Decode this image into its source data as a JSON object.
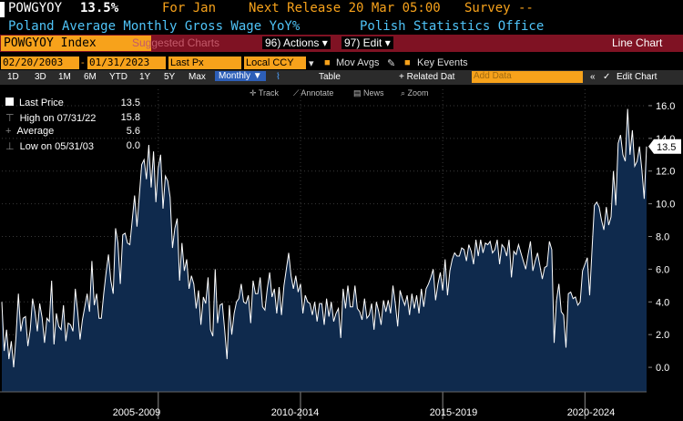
{
  "header": {
    "ticker": "POWGYOY",
    "last": "13.5%",
    "for_label": "For Jan",
    "next_release": "Next Release 20 Mar 05:00",
    "survey": "Survey --",
    "description": "Poland Average Monthly Gross Wage YoY%",
    "source": "Polish Statistics Office"
  },
  "toolbar": {
    "index": "POWGYOY Index",
    "suggested": "Suggested Charts",
    "actions": "96) Actions",
    "edit": "97) Edit",
    "chart_type": "Line Chart"
  },
  "settings": {
    "start": "02/20/2003",
    "end": "01/31/2023",
    "field": "Last Px",
    "currency": "Local CCY",
    "mov_avgs": "Mov Avgs",
    "key_events": "Key Events"
  },
  "periods": [
    "1D",
    "3D",
    "1M",
    "6M",
    "YTD",
    "1Y",
    "5Y",
    "Max"
  ],
  "frequency": "Monthly",
  "table_label": "Table",
  "related": "+ Related Dat",
  "add_data": "Add Data",
  "edit_chart": "Edit Chart",
  "tools": [
    "Track",
    "Annotate",
    "News",
    "Zoom"
  ],
  "legend": [
    {
      "label": "Last Price",
      "value": "13.5"
    },
    {
      "label": "High on 07/31/22",
      "value": "15.8"
    },
    {
      "label": "Average",
      "value": "5.6"
    },
    {
      "label": "Low on 05/31/03",
      "value": "0.0"
    }
  ],
  "colors": {
    "line": "#ffffff",
    "fill": "#0f2a4d",
    "accent": "#f7a21b",
    "bar": "#7f1223"
  },
  "chart_data": {
    "type": "area",
    "title": "Poland Average Monthly Gross Wage YoY%",
    "xlabel": "",
    "ylabel": "",
    "x_tick_labels": [
      "2005-2009",
      "2010-2014",
      "2015-2019",
      "2020-2024"
    ],
    "y_ticks": [
      "0.0",
      "2.0",
      "4.0",
      "6.0",
      "8.0",
      "10.0",
      "12.0",
      "14.0",
      "16.0"
    ],
    "ylim": [
      -1.5,
      17
    ],
    "last_value_label": "13.5",
    "x_start": "2003-02",
    "x_end": "2023-01",
    "series": [
      {
        "values": [
          4.0,
          1.0,
          2.3,
          0.5,
          1.6,
          0.0,
          1.9,
          4.5,
          2.2,
          3.0,
          3.1,
          1.3,
          2.3,
          4.2,
          3.4,
          2.2,
          3.9,
          3.0,
          1.5,
          3.0,
          2.8,
          5.3,
          1.4,
          3.3,
          2.5,
          2.3,
          3.8,
          1.6,
          2.7,
          2.6,
          2.2,
          4.8,
          3.4,
          1.7,
          2.9,
          3.7,
          4.5,
          3.4,
          6.5,
          3.8,
          4.5,
          3.0,
          3.0,
          4.5,
          5.8,
          6.9,
          5.3,
          4.5,
          8.5,
          7.6,
          5.1,
          8.1,
          8.2,
          7.6,
          7.5,
          9.0,
          10.5,
          8.6,
          10.5,
          12.4,
          12.7,
          11.5,
          13.6,
          11.0,
          13.2,
          10.1,
          12.2,
          13.0,
          9.7,
          11.7,
          11.4,
          10.4,
          7.3,
          8.5,
          9.1,
          5.3,
          7.6,
          5.9,
          6.6,
          4.8,
          5.6,
          5.1,
          3.6,
          4.7,
          2.6,
          4.3,
          3.9,
          5.5,
          2.3,
          1.9,
          6.0,
          2.7,
          3.8,
          3.9,
          2.3,
          0.5,
          3.8,
          2.0,
          3.3,
          4.0,
          4.2,
          5.1,
          4.0,
          3.9,
          4.4,
          2.7,
          5.3,
          4.5,
          4.5,
          5.5,
          3.7,
          3.5,
          4.8,
          5.8,
          4.3,
          4.8,
          3.3,
          4.9,
          3.2,
          5.0,
          6.0,
          7.0,
          5.6,
          4.8,
          5.6,
          4.6,
          5.1,
          3.3,
          4.4,
          4.0,
          3.9,
          3.2,
          4.0,
          2.8,
          3.9,
          3.9,
          2.6,
          4.2,
          3.1,
          4.0,
          2.8,
          3.3,
          3.6,
          1.8,
          4.8,
          3.6,
          5.0,
          3.7,
          3.7,
          5.0,
          3.6,
          3.4,
          2.9,
          4.2,
          3.0,
          3.2,
          3.9,
          2.3,
          4.0,
          3.4,
          2.6,
          4.1,
          3.4,
          4.1,
          3.3,
          5.0,
          3.9,
          2.5,
          4.7,
          4.2,
          3.8,
          4.4,
          3.2,
          4.5,
          3.6,
          4.4,
          3.3,
          4.8,
          3.7,
          4.8,
          5.1,
          5.5,
          6.0,
          4.1,
          5.1,
          5.8,
          4.7,
          6.6,
          4.4,
          5.9,
          6.6,
          7.0,
          6.8,
          6.8,
          7.3,
          7.2,
          6.5,
          7.5,
          7.1,
          6.3,
          7.8,
          6.8,
          7.8,
          7.0,
          7.6,
          7.5,
          7.7,
          7.0,
          7.2,
          7.8,
          6.3,
          7.5,
          7.3,
          6.8,
          7.8,
          5.5,
          7.1,
          6.9,
          7.5,
          7.0,
          6.5,
          6.0,
          6.9,
          7.7,
          5.9,
          6.5,
          7.0,
          6.2,
          5.4,
          6.1,
          6.2,
          7.7,
          7.2,
          1.5,
          4.1,
          5.1,
          3.4,
          3.2,
          1.2,
          4.5,
          4.6,
          4.2,
          4.3,
          3.8,
          4.0,
          5.9,
          6.3,
          6.7,
          4.4,
          7.2,
          9.9,
          10.1,
          9.8,
          9.0,
          8.4,
          9.8,
          8.7,
          9.2,
          12.0,
          9.9,
          13.7,
          14.2,
          13.0,
          12.6,
          15.8,
          13.0,
          14.5,
          12.3,
          12.6,
          13.5,
          12.1,
          10.3,
          13.5
        ]
      }
    ]
  }
}
